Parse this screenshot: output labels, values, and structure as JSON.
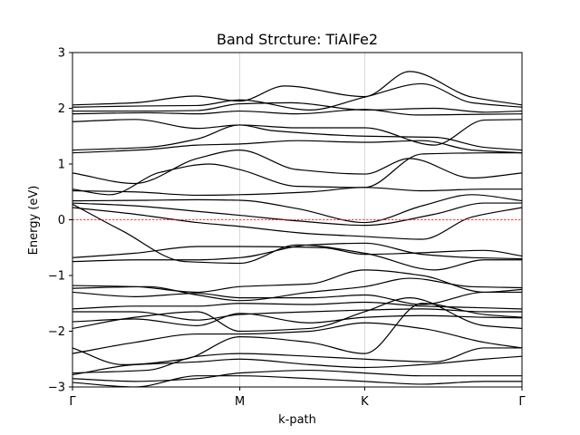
{
  "chart_data": {
    "type": "line",
    "title": "Band Strcture: TiAlFe2",
    "xlabel": "k-path",
    "ylabel": "Energy (eV)",
    "ylim": [
      -3,
      3
    ],
    "xlim": [
      0,
      3.6
    ],
    "yticks": [
      -3,
      -2,
      -1,
      0,
      1,
      2,
      3
    ],
    "yticklabels": [
      "−3",
      "−2",
      "−1",
      "0",
      "1",
      "2",
      "3"
    ],
    "kpoints": [
      {
        "label": "Γ",
        "x": 0
      },
      {
        "label": "M",
        "x": 1.34
      },
      {
        "label": "K",
        "x": 2.34
      },
      {
        "label": "Γ",
        "x": 3.6
      }
    ],
    "grid": "vertical lines at high-symmetry points",
    "fermi_level": {
      "value": 0,
      "color": "#ff0000",
      "style": "dashed"
    },
    "line_color": "#000000",
    "series": [
      {
        "x": [
          0,
          0.5,
          0.98,
          1.34,
          1.7,
          2.34,
          2.7,
          3.2,
          3.6
        ],
        "values": [
          2.06,
          2.1,
          2.22,
          2.13,
          2.4,
          2.21,
          2.66,
          2.2,
          2.06
        ]
      },
      {
        "x": [
          0,
          0.5,
          1.0,
          1.34,
          1.9,
          2.34,
          2.8,
          3.2,
          3.6
        ],
        "values": [
          2.02,
          2.04,
          2.05,
          2.15,
          1.97,
          2.2,
          2.44,
          2.1,
          2.02
        ]
      },
      {
        "x": [
          0,
          0.6,
          1.0,
          1.34,
          1.75,
          2.34,
          2.9,
          3.3,
          3.6
        ],
        "values": [
          1.95,
          1.95,
          1.96,
          2.08,
          2.1,
          1.97,
          2.0,
          1.93,
          1.95
        ]
      },
      {
        "x": [
          0,
          0.6,
          1.0,
          1.34,
          1.8,
          2.34,
          2.75,
          3.2,
          3.6
        ],
        "values": [
          1.9,
          1.92,
          1.9,
          1.95,
          1.9,
          1.98,
          1.88,
          1.89,
          1.9
        ]
      },
      {
        "x": [
          0,
          0.5,
          1.0,
          1.34,
          1.8,
          2.34,
          2.9,
          3.3,
          3.6
        ],
        "values": [
          1.76,
          1.8,
          1.64,
          1.7,
          1.65,
          1.65,
          1.34,
          1.79,
          1.8
        ]
      },
      {
        "x": [
          0,
          0.6,
          1.0,
          1.34,
          1.6,
          2.34,
          2.9,
          3.3,
          3.6
        ],
        "values": [
          1.25,
          1.3,
          1.45,
          1.7,
          1.6,
          1.5,
          1.48,
          1.3,
          1.25
        ]
      },
      {
        "x": [
          0,
          0.6,
          1.0,
          1.34,
          1.8,
          2.34,
          2.8,
          3.2,
          3.6
        ],
        "values": [
          1.2,
          1.26,
          1.34,
          1.36,
          1.42,
          1.39,
          1.42,
          1.25,
          1.2
        ]
      },
      {
        "x": [
          0,
          0.5,
          1.0,
          1.34,
          1.8,
          2.34,
          2.7,
          3.2,
          3.6
        ],
        "values": [
          0.84,
          0.65,
          1.1,
          1.25,
          0.9,
          0.82,
          1.1,
          0.75,
          0.84
        ]
      },
      {
        "x": [
          0,
          0.3,
          0.7,
          1.1,
          1.34,
          1.8,
          2.34,
          2.8,
          3.3,
          3.6
        ],
        "values": [
          0.55,
          0.45,
          0.85,
          1.0,
          0.9,
          0.6,
          0.58,
          1.18,
          1.2,
          1.2
        ]
      },
      {
        "x": [
          0,
          0.5,
          1.0,
          1.34,
          1.9,
          2.34,
          2.8,
          3.3,
          3.6
        ],
        "values": [
          0.52,
          0.5,
          0.44,
          0.45,
          0.5,
          0.58,
          0.52,
          0.55,
          0.55
        ]
      },
      {
        "x": [
          0,
          0.6,
          1.0,
          1.34,
          1.8,
          2.34,
          2.8,
          3.2,
          3.6
        ],
        "values": [
          0.34,
          0.35,
          0.36,
          0.35,
          0.2,
          -0.05,
          0.25,
          0.45,
          0.34
        ]
      },
      {
        "x": [
          0,
          0.5,
          1.0,
          1.34,
          1.8,
          2.34,
          2.9,
          3.3,
          3.6
        ],
        "values": [
          0.3,
          0.25,
          0.15,
          0.08,
          -0.02,
          -0.1,
          0.1,
          0.3,
          0.3
        ]
      },
      {
        "x": [
          0,
          0.5,
          1.0,
          1.34,
          1.9,
          2.34,
          2.8,
          3.2,
          3.6
        ],
        "values": [
          0.22,
          0.1,
          -0.05,
          -0.12,
          -0.25,
          -0.3,
          -0.35,
          0.05,
          0.22
        ]
      },
      {
        "x": [
          0,
          0.4,
          0.9,
          1.34,
          1.8,
          2.34,
          2.9,
          3.3,
          3.6
        ],
        "values": [
          0.28,
          -0.2,
          -0.75,
          -0.78,
          -0.45,
          -0.6,
          -0.9,
          -0.72,
          -0.72
        ]
      },
      {
        "x": [
          0,
          0.5,
          1.0,
          1.34,
          2.0,
          2.34,
          2.7,
          3.3,
          3.6
        ],
        "values": [
          -0.68,
          -0.6,
          -0.48,
          -0.48,
          -0.5,
          -0.62,
          -0.6,
          -0.55,
          -0.65
        ]
      },
      {
        "x": [
          0,
          0.5,
          1.0,
          1.34,
          1.9,
          2.34,
          2.8,
          3.2,
          3.6
        ],
        "values": [
          -0.75,
          -0.72,
          -0.72,
          -0.68,
          -0.45,
          -0.42,
          -0.62,
          -0.68,
          -0.7
        ]
      },
      {
        "x": [
          0,
          0.5,
          1.0,
          1.34,
          1.9,
          2.34,
          2.8,
          3.3,
          3.6
        ],
        "values": [
          -1.18,
          -1.2,
          -1.3,
          -1.2,
          -1.15,
          -0.9,
          -1.0,
          -1.3,
          -1.25
        ]
      },
      {
        "x": [
          0,
          0.6,
          1.0,
          1.34,
          1.9,
          2.34,
          2.7,
          3.2,
          3.6
        ],
        "values": [
          -1.23,
          -1.2,
          -1.35,
          -1.45,
          -1.3,
          -1.2,
          -1.05,
          -1.2,
          -1.22
        ]
      },
      {
        "x": [
          0,
          0.5,
          1.0,
          1.34,
          1.9,
          2.34,
          2.8,
          3.3,
          3.6
        ],
        "values": [
          -1.3,
          -1.38,
          -1.32,
          -1.4,
          -1.4,
          -1.35,
          -1.52,
          -1.3,
          -1.3
        ]
      },
      {
        "x": [
          0,
          0.5,
          1.0,
          1.34,
          1.9,
          2.34,
          2.8,
          3.3,
          3.6
        ],
        "values": [
          -1.6,
          -1.55,
          -1.55,
          -1.5,
          -1.52,
          -1.48,
          -1.55,
          -1.58,
          -1.6
        ]
      },
      {
        "x": [
          0,
          0.5,
          1.0,
          1.34,
          1.9,
          2.34,
          2.8,
          3.3,
          3.6
        ],
        "values": [
          -1.65,
          -1.65,
          -1.8,
          -1.7,
          -1.65,
          -1.62,
          -1.6,
          -1.65,
          -1.65
        ]
      },
      {
        "x": [
          0,
          0.5,
          1.0,
          1.34,
          1.9,
          2.34,
          2.8,
          3.3,
          3.6
        ],
        "values": [
          -1.83,
          -1.78,
          -1.9,
          -1.68,
          -1.85,
          -1.75,
          -1.72,
          -1.75,
          -1.76
        ]
      },
      {
        "x": [
          0,
          0.5,
          1.0,
          1.34,
          1.9,
          2.34,
          2.7,
          3.3,
          3.6
        ],
        "values": [
          -1.95,
          -1.75,
          -1.65,
          -2.0,
          -1.95,
          -1.65,
          -1.4,
          -1.9,
          -1.95
        ]
      },
      {
        "x": [
          0,
          0.5,
          1.0,
          1.34,
          1.9,
          2.34,
          2.8,
          3.3,
          3.6
        ],
        "values": [
          -2.4,
          -2.2,
          -2.05,
          -2.05,
          -2.0,
          -1.85,
          -1.95,
          -2.2,
          -2.3
        ]
      },
      {
        "x": [
          0,
          0.4,
          0.9,
          1.34,
          1.9,
          2.34,
          2.8,
          3.3,
          3.6
        ],
        "values": [
          -2.3,
          -2.6,
          -2.5,
          -2.1,
          -2.2,
          -2.4,
          -1.5,
          -1.7,
          -1.75
        ]
      },
      {
        "x": [
          0,
          0.6,
          1.0,
          1.34,
          1.9,
          2.34,
          2.9,
          3.3,
          3.6
        ],
        "values": [
          -2.75,
          -2.7,
          -2.45,
          -2.4,
          -2.45,
          -2.5,
          -2.55,
          -2.3,
          -2.3
        ]
      },
      {
        "x": [
          0,
          0.5,
          1.0,
          1.34,
          1.9,
          2.34,
          2.8,
          3.3,
          3.6
        ],
        "values": [
          -2.78,
          -2.6,
          -2.55,
          -2.5,
          -2.6,
          -2.65,
          -2.6,
          -2.5,
          -2.45
        ]
      },
      {
        "x": [
          0,
          0.5,
          1.0,
          1.34,
          1.9,
          2.34,
          2.8,
          3.3,
          3.6
        ],
        "values": [
          -2.85,
          -2.9,
          -2.85,
          -2.75,
          -2.7,
          -2.75,
          -2.8,
          -2.8,
          -2.8
        ]
      },
      {
        "x": [
          0,
          0.5,
          1.0,
          1.34,
          1.9,
          2.34,
          2.8,
          3.3,
          3.6
        ],
        "values": [
          -2.92,
          -3.0,
          -2.8,
          -2.8,
          -2.85,
          -2.9,
          -2.95,
          -2.9,
          -2.9
        ]
      }
    ]
  }
}
